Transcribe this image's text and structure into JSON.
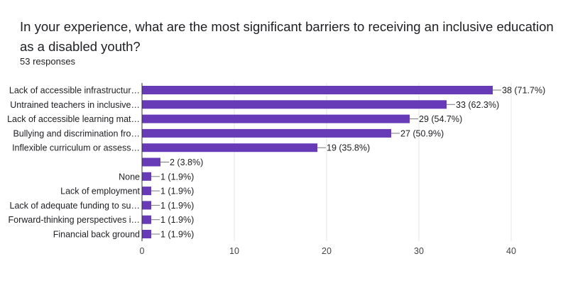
{
  "question": "In your experience, what are the most significant barriers to receiving an inclusive education as a disabled youth?",
  "responses_label": "53 responses",
  "colors": {
    "bar": "#673ab7",
    "grid": "#e6e6e6",
    "axis": "#333333",
    "leader": "#777777"
  },
  "chart_data": {
    "type": "bar",
    "orientation": "horizontal",
    "title": "In your experience, what are the most significant barriers to receiving an inclusive education as a disabled youth?",
    "categories": [
      "Lack of accessible infrastructur…",
      "Untrained teachers in inclusive…",
      "Lack of accessible learning mat…",
      "Bullying and discrimination fro…",
      "Inflexible curriculum or assess…",
      "",
      "None",
      "Lack of employment",
      "Lack of adequate funding to su…",
      "Forward-thinking perspectives i…",
      "Financial back ground"
    ],
    "values": [
      38,
      33,
      29,
      27,
      19,
      2,
      1,
      1,
      1,
      1,
      1
    ],
    "value_labels": [
      "38 (71.7%)",
      "33 (62.3%)",
      "29 (54.7%)",
      "27 (50.9%)",
      "19 (35.8%)",
      "2 (3.8%)",
      "1 (1.9%)",
      "1 (1.9%)",
      "1 (1.9%)",
      "1 (1.9%)",
      "1 (1.9%)"
    ],
    "xlim": [
      0,
      40
    ],
    "xticks": [
      0,
      10,
      20,
      30,
      40
    ],
    "grid": true,
    "xlabel": "",
    "ylabel": ""
  }
}
